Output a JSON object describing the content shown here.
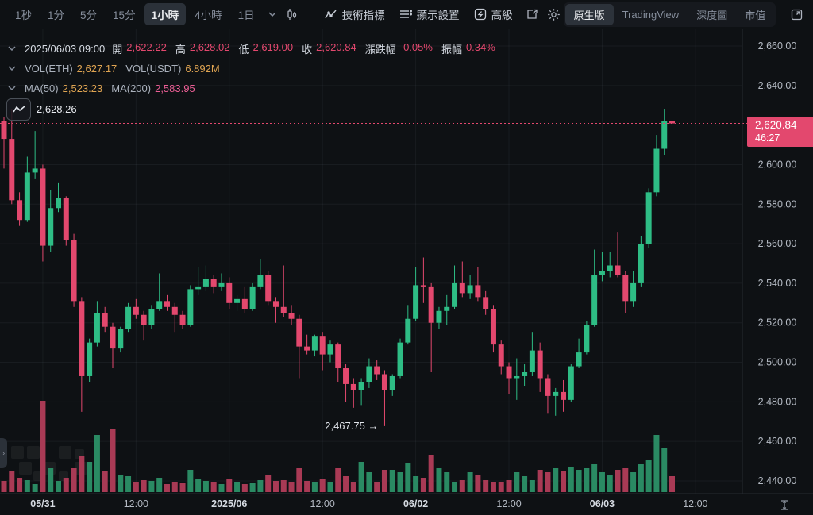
{
  "colors": {
    "bg": "#0e1114",
    "up": "#2ebd85",
    "down": "#e3486e",
    "vol_up": "#2a8a63",
    "vol_down": "#a93a55",
    "amber": "#dfa452",
    "pink": "#ec5f96",
    "grid": "rgba(132,142,156,0.09)",
    "axis_line": "#262b31",
    "axis_text": "#b4bac3",
    "axis_text_bold": "#d6dbe2"
  },
  "toolbar": {
    "intervals": [
      "1秒",
      "1分",
      "5分",
      "15分",
      "1小時",
      "4小時",
      "1日"
    ],
    "active_interval": "1小時",
    "tools": [
      {
        "icon": "indicator-icon",
        "label": "技術指標"
      },
      {
        "icon": "display-settings-icon",
        "label": "顯示設置"
      },
      {
        "icon": "advanced-icon",
        "label": "高級"
      }
    ],
    "views": [
      "原生版",
      "TradingView",
      "深度圖",
      "市值"
    ],
    "active_view": "原生版"
  },
  "legend": {
    "ohlc": {
      "datetime": "2025/06/03 09:00",
      "items": [
        {
          "label": "開",
          "value": "2,622.22"
        },
        {
          "label": "高",
          "value": "2,628.02"
        },
        {
          "label": "低",
          "value": "2,619.00"
        },
        {
          "label": "收",
          "value": "2,620.84"
        },
        {
          "label": "漲跌幅",
          "value": "-0.05%"
        },
        {
          "label": "振幅",
          "value": "0.34%"
        }
      ]
    },
    "vol": {
      "items": [
        {
          "label": "VOL(ETH)",
          "value": "2,627.17",
          "tone": "amber"
        },
        {
          "label": "VOL(USDT)",
          "value": "6.892M",
          "tone": "amber"
        }
      ]
    },
    "ma": {
      "items": [
        {
          "label": "MA(50)",
          "value": "2,523.23",
          "tone": "amber"
        },
        {
          "label": "MA(200)",
          "value": "2,583.95",
          "tone": "pink"
        }
      ]
    }
  },
  "markers": {
    "visible_high": "2,628.26",
    "visible_low": "2,467.75",
    "low_arrow": "→"
  },
  "badge": {
    "price": "2,620.84",
    "countdown": "46:27"
  },
  "edge_handle_glyph": "›",
  "chart_data": {
    "type": "candlestick",
    "interval": "1h",
    "start_time": "2025/05/30 19:00",
    "last_candle_time": "2025/06/03 09:00",
    "visible_high": 2628.26,
    "visible_low": 2467.75,
    "last_close": 2620.84,
    "y_axis": {
      "min": 2440,
      "max": 2660,
      "step": 20
    },
    "x_ticks": [
      {
        "index": 5,
        "label": "05/31",
        "bold": true
      },
      {
        "index": 17,
        "label": "12:00",
        "bold": false
      },
      {
        "index": 29,
        "label": "2025/06",
        "bold": true
      },
      {
        "index": 41,
        "label": "12:00",
        "bold": false
      },
      {
        "index": 53,
        "label": "06/02",
        "bold": true
      },
      {
        "index": 65,
        "label": "12:00",
        "bold": false
      },
      {
        "index": 77,
        "label": "06/03",
        "bold": true
      },
      {
        "index": 89,
        "label": "12:00",
        "bold": false
      }
    ],
    "candles": [
      [
        2622,
        2624,
        2598,
        2613,
        14
      ],
      [
        2613,
        2628.26,
        2580,
        2582,
        26
      ],
      [
        2582,
        2586,
        2569,
        2572,
        18
      ],
      [
        2572,
        2604,
        2571,
        2596,
        15
      ],
      [
        2596,
        2617,
        2593,
        2598,
        10
      ],
      [
        2598,
        2600,
        2551,
        2559,
        115
      ],
      [
        2559,
        2587,
        2556,
        2578,
        30
      ],
      [
        2578,
        2591,
        2576,
        2583,
        14
      ],
      [
        2583,
        2584,
        2559,
        2562,
        18
      ],
      [
        2562,
        2565,
        2528,
        2531,
        30
      ],
      [
        2531,
        2533,
        2475,
        2493,
        45
      ],
      [
        2493,
        2512,
        2490,
        2510,
        38
      ],
      [
        2510,
        2531,
        2508,
        2525,
        72
      ],
      [
        2525,
        2528,
        2515,
        2518,
        26
      ],
      [
        2518,
        2520,
        2497,
        2507,
        80
      ],
      [
        2507,
        2518,
        2505,
        2517,
        22
      ],
      [
        2517,
        2530,
        2515,
        2528,
        20
      ],
      [
        2528,
        2532,
        2522,
        2524,
        13
      ],
      [
        2524,
        2526,
        2511,
        2519,
        15
      ],
      [
        2519,
        2529,
        2517,
        2527,
        14
      ],
      [
        2527,
        2545,
        2526,
        2531,
        18
      ],
      [
        2531,
        2534,
        2526,
        2528,
        10
      ],
      [
        2528,
        2530,
        2515,
        2524,
        12
      ],
      [
        2524,
        2526,
        2517,
        2519,
        11
      ],
      [
        2519,
        2539,
        2518,
        2537,
        28
      ],
      [
        2537,
        2548,
        2534,
        2538,
        16
      ],
      [
        2538,
        2549,
        2536,
        2542,
        14
      ],
      [
        2542,
        2544,
        2535,
        2538,
        12
      ],
      [
        2538,
        2545,
        2536,
        2540,
        10
      ],
      [
        2540,
        2543,
        2527,
        2530,
        16
      ],
      [
        2530,
        2534,
        2526,
        2532,
        12
      ],
      [
        2532,
        2538,
        2525,
        2527,
        10
      ],
      [
        2527,
        2540,
        2526,
        2538,
        11
      ],
      [
        2538,
        2552,
        2537,
        2544,
        15
      ],
      [
        2544,
        2546,
        2529,
        2531,
        22
      ],
      [
        2531,
        2533,
        2520,
        2528,
        14
      ],
      [
        2528,
        2549,
        2523,
        2525,
        15
      ],
      [
        2525,
        2529,
        2519,
        2522,
        12
      ],
      [
        2522,
        2524,
        2492,
        2508,
        30
      ],
      [
        2508,
        2514,
        2504,
        2506,
        14
      ],
      [
        2506,
        2514,
        2503,
        2513,
        13
      ],
      [
        2513,
        2515,
        2496,
        2504,
        16
      ],
      [
        2504,
        2511,
        2500,
        2509,
        12
      ],
      [
        2509,
        2510,
        2490,
        2497,
        30
      ],
      [
        2497,
        2499,
        2480,
        2489,
        20
      ],
      [
        2489,
        2492,
        2477,
        2486,
        12
      ],
      [
        2486,
        2492,
        2478,
        2490,
        38
      ],
      [
        2490,
        2502,
        2487,
        2498,
        25
      ],
      [
        2498,
        2501,
        2491,
        2494,
        12
      ],
      [
        2494,
        2496,
        2467.75,
        2486,
        28
      ],
      [
        2486,
        2494,
        2483,
        2493,
        28
      ],
      [
        2493,
        2512,
        2492,
        2510,
        25
      ],
      [
        2510,
        2529,
        2509,
        2522,
        37
      ],
      [
        2522,
        2548,
        2521,
        2539,
        20
      ],
      [
        2539,
        2553,
        2530,
        2538,
        18
      ],
      [
        2538,
        2540,
        2495,
        2520,
        47
      ],
      [
        2520,
        2528,
        2517,
        2526,
        30
      ],
      [
        2526,
        2534,
        2519,
        2528,
        25
      ],
      [
        2528,
        2549,
        2527,
        2540,
        12
      ],
      [
        2540,
        2551,
        2533,
        2535,
        15
      ],
      [
        2535,
        2544,
        2532,
        2539,
        25
      ],
      [
        2539,
        2548,
        2531,
        2533,
        22
      ],
      [
        2533,
        2536,
        2524,
        2527,
        15
      ],
      [
        2527,
        2529,
        2505,
        2509,
        12
      ],
      [
        2509,
        2511,
        2494,
        2498,
        12
      ],
      [
        2498,
        2500,
        2484,
        2492,
        15
      ],
      [
        2492,
        2502,
        2481,
        2493,
        25
      ],
      [
        2493,
        2499,
        2488,
        2495,
        20
      ],
      [
        2495,
        2515,
        2493,
        2506,
        15
      ],
      [
        2506,
        2510,
        2485,
        2492,
        28
      ],
      [
        2492,
        2494,
        2474,
        2483,
        25
      ],
      [
        2483,
        2487,
        2473,
        2485,
        30
      ],
      [
        2485,
        2491,
        2475,
        2481,
        27
      ],
      [
        2481,
        2499,
        2480,
        2498,
        32
      ],
      [
        2498,
        2512,
        2497,
        2505,
        28
      ],
      [
        2505,
        2521,
        2504,
        2519,
        30
      ],
      [
        2519,
        2557,
        2518,
        2544,
        35
      ],
      [
        2544,
        2556,
        2541,
        2546,
        25
      ],
      [
        2546,
        2556,
        2543,
        2549,
        22
      ],
      [
        2549,
        2566,
        2543,
        2544,
        28
      ],
      [
        2544,
        2546,
        2525,
        2531,
        30
      ],
      [
        2531,
        2546,
        2528,
        2540,
        25
      ],
      [
        2540,
        2564,
        2538,
        2560,
        35
      ],
      [
        2560,
        2588,
        2558,
        2586,
        40
      ],
      [
        2586,
        2615,
        2584,
        2608,
        72
      ],
      [
        2608,
        2628.26,
        2605,
        2622.22,
        55
      ],
      [
        2622.22,
        2628.02,
        2619,
        2620.84,
        20
      ]
    ]
  }
}
